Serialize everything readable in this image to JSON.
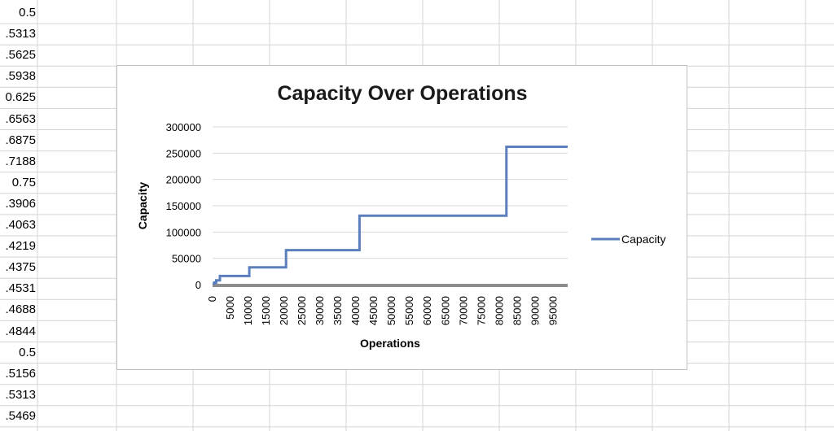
{
  "spreadsheet": {
    "column_a_values": [
      "0.5",
      ".5313",
      ".5625",
      ".5938",
      "0.625",
      ".6563",
      ".6875",
      ".7188",
      "0.75",
      ".3906",
      ".4063",
      ".4219",
      ".4375",
      ".4531",
      ".4688",
      ".4844",
      "0.5",
      ".5156",
      ".5313",
      ".5469"
    ]
  },
  "chart_data": {
    "type": "line",
    "title": "Capacity Over Operations",
    "xlabel": "Operations",
    "ylabel": "Capacity",
    "xlim": [
      0,
      99000
    ],
    "ylim": [
      0,
      300000
    ],
    "x_ticks": [
      "0",
      "5000",
      "10000",
      "15000",
      "20000",
      "25000",
      "30000",
      "35000",
      "40000",
      "45000",
      "50000",
      "55000",
      "60000",
      "65000",
      "70000",
      "75000",
      "80000",
      "85000",
      "90000",
      "95000"
    ],
    "y_ticks": [
      "0",
      "50000",
      "100000",
      "150000",
      "200000",
      "250000",
      "300000"
    ],
    "grid": true,
    "legend": "right",
    "series": [
      {
        "name": "Capacity",
        "color": "#5b7fbd",
        "points": [
          [
            0,
            2048
          ],
          [
            512,
            2048
          ],
          [
            512,
            4096
          ],
          [
            1024,
            4096
          ],
          [
            1024,
            8192
          ],
          [
            2048,
            8192
          ],
          [
            2048,
            16384
          ],
          [
            4096,
            16384
          ],
          [
            4096,
            16384
          ],
          [
            5120,
            16384
          ],
          [
            5120,
            16384
          ],
          [
            10240,
            16384
          ],
          [
            10240,
            32768
          ],
          [
            20480,
            32768
          ],
          [
            20480,
            65536
          ],
          [
            40960,
            65536
          ],
          [
            40960,
            131072
          ],
          [
            81920,
            131072
          ],
          [
            81920,
            262144
          ],
          [
            99000,
            262144
          ]
        ]
      }
    ]
  }
}
